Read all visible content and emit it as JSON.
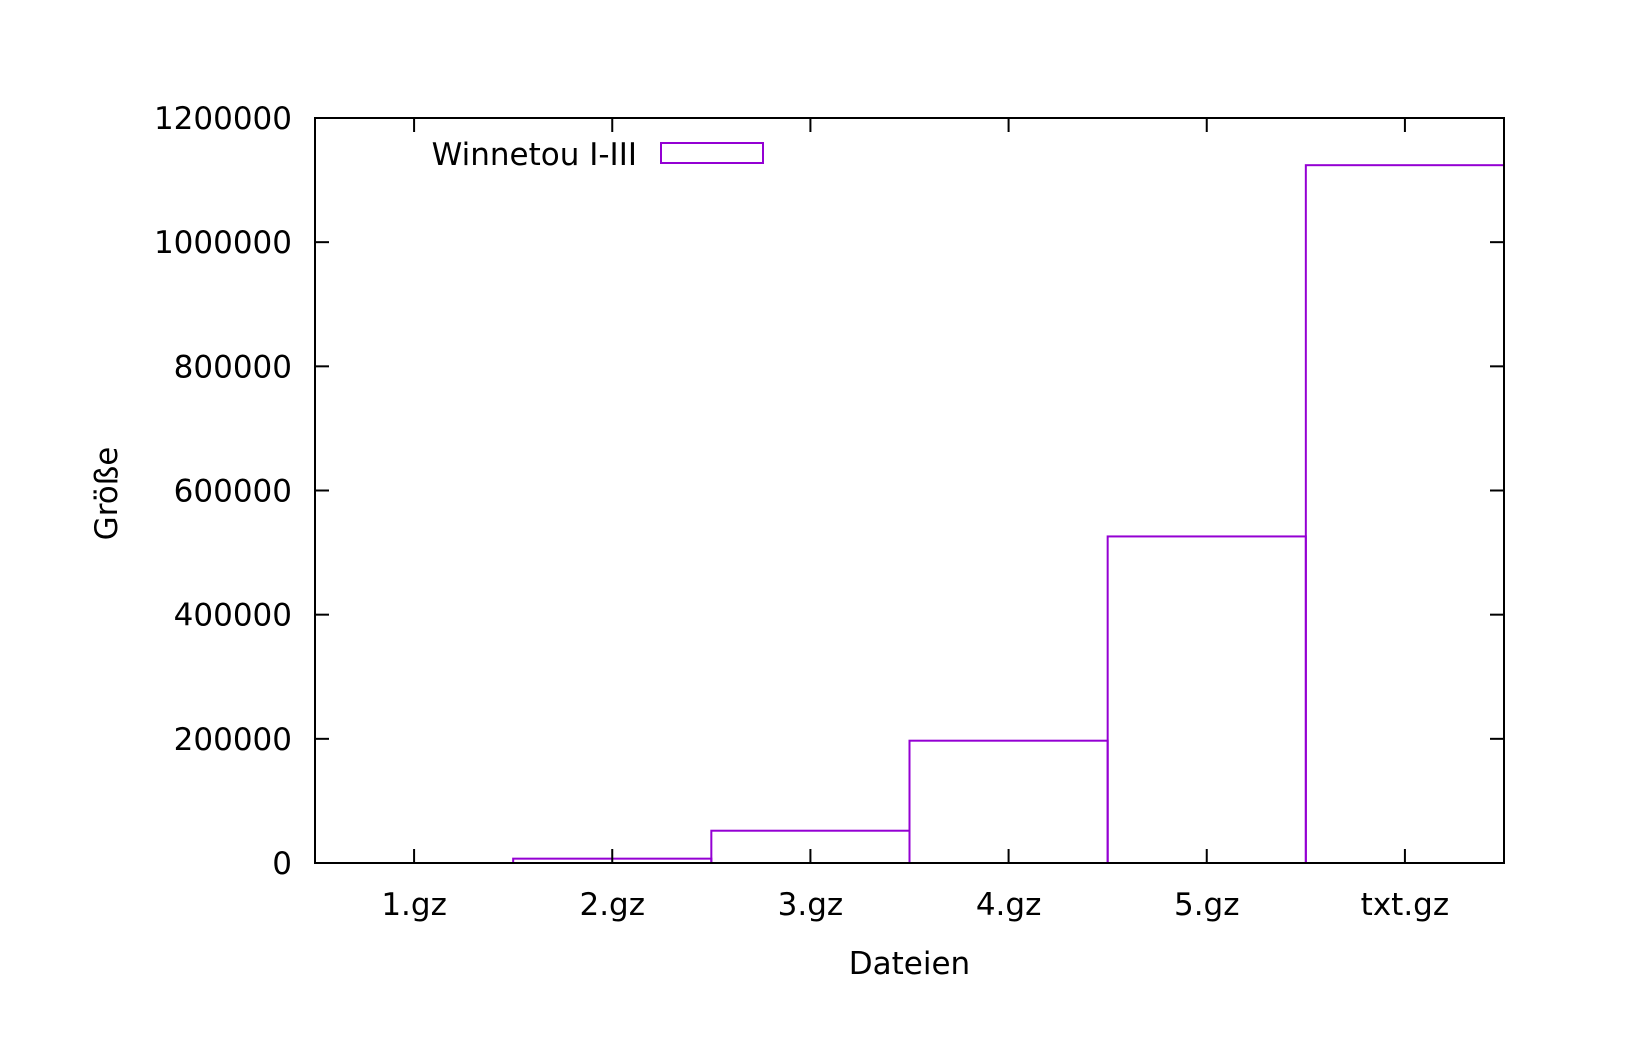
{
  "chart_data": {
    "type": "bar",
    "title": "",
    "xlabel": "Dateien",
    "ylabel": "Größe",
    "categories": [
      "1.gz",
      "2.gz",
      "3.gz",
      "4.gz",
      "5.gz",
      "txt.gz"
    ],
    "series": [
      {
        "name": "Winnetou I-III",
        "values": [
          0,
          7000,
          52000,
          197000,
          526000,
          1124000
        ]
      }
    ],
    "ylim": [
      0,
      1200000
    ],
    "yticks": [
      "0",
      "200000",
      "400000",
      "600000",
      "800000",
      "1000000",
      "1200000"
    ],
    "grid": false,
    "legend_position": "top-left",
    "colors": {
      "series": "#9400d3",
      "axis": "#000000"
    }
  }
}
